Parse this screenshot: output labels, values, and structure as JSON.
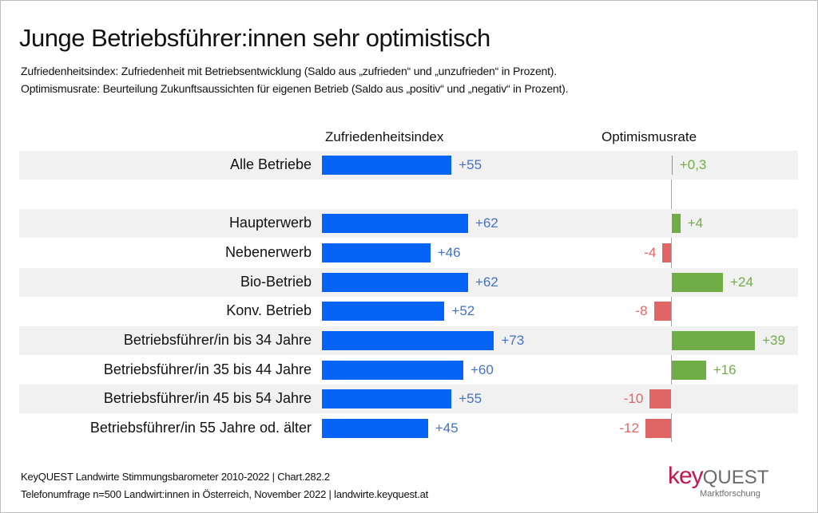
{
  "title": "Junge Betriebsführer:innen sehr optimistisch",
  "subtitles": [
    "Zufriedenheitsindex: Zufriedenheit mit Betriebsentwicklung (Saldo aus „zufrieden“ und „unzufrieden“ in Prozent).",
    "Optimismusrate: Beurteilung Zukunftsaussichten für eigenen Betrieb (Saldo aus „positiv“ und „negativ“ in Prozent)."
  ],
  "footer": [
    "KeyQUEST Landwirte Stimmungsbarometer 2010-2022  | Chart.282.2",
    "Telefonumfrage n=500 Landwirt:innen in Österreich, November 2022 | landwirte.keyquest.at"
  ],
  "logo": {
    "key": "key",
    "quest": "QUEST",
    "tagline": "Marktforschung"
  },
  "colors": {
    "satisfaction_bar": "#0563f5",
    "satisfaction_label": "#4472c4",
    "positive": "#70ad47",
    "negative": "#e06666",
    "row_shade": "#f1f1f1"
  },
  "chart_data": {
    "type": "bar",
    "orientation": "horizontal",
    "title": "Junge Betriebsführer:innen sehr optimistisch",
    "categories": [
      "Alle Betriebe",
      "Haupterwerb",
      "Nebenerwerb",
      "Bio-Betrieb",
      "Konv. Betrieb",
      "Betriebsführer/in bis 34 Jahre",
      "Betriebsführer/in 35 bis 44 Jahre",
      "Betriebsführer/in 45 bis 54 Jahre",
      "Betriebsführer/in 55 Jahre od. älter"
    ],
    "series": [
      {
        "name": "Zufriedenheitsindex",
        "values": [
          55,
          62,
          46,
          62,
          52,
          73,
          60,
          55,
          45
        ],
        "labels": [
          "+55",
          "+62",
          "+46",
          "+62",
          "+52",
          "+73",
          "+60",
          "+55",
          "+45"
        ]
      },
      {
        "name": "Optimismusrate",
        "values": [
          0.3,
          4,
          -4,
          24,
          -8,
          39,
          16,
          -10,
          -12
        ],
        "labels": [
          "+0,3",
          "+4",
          "-4",
          "+24",
          "-8",
          "+39",
          "+16",
          "-10",
          "-12"
        ]
      }
    ],
    "legend": "column-headers-top",
    "grid": false,
    "xlabel": "",
    "ylabel": ""
  }
}
